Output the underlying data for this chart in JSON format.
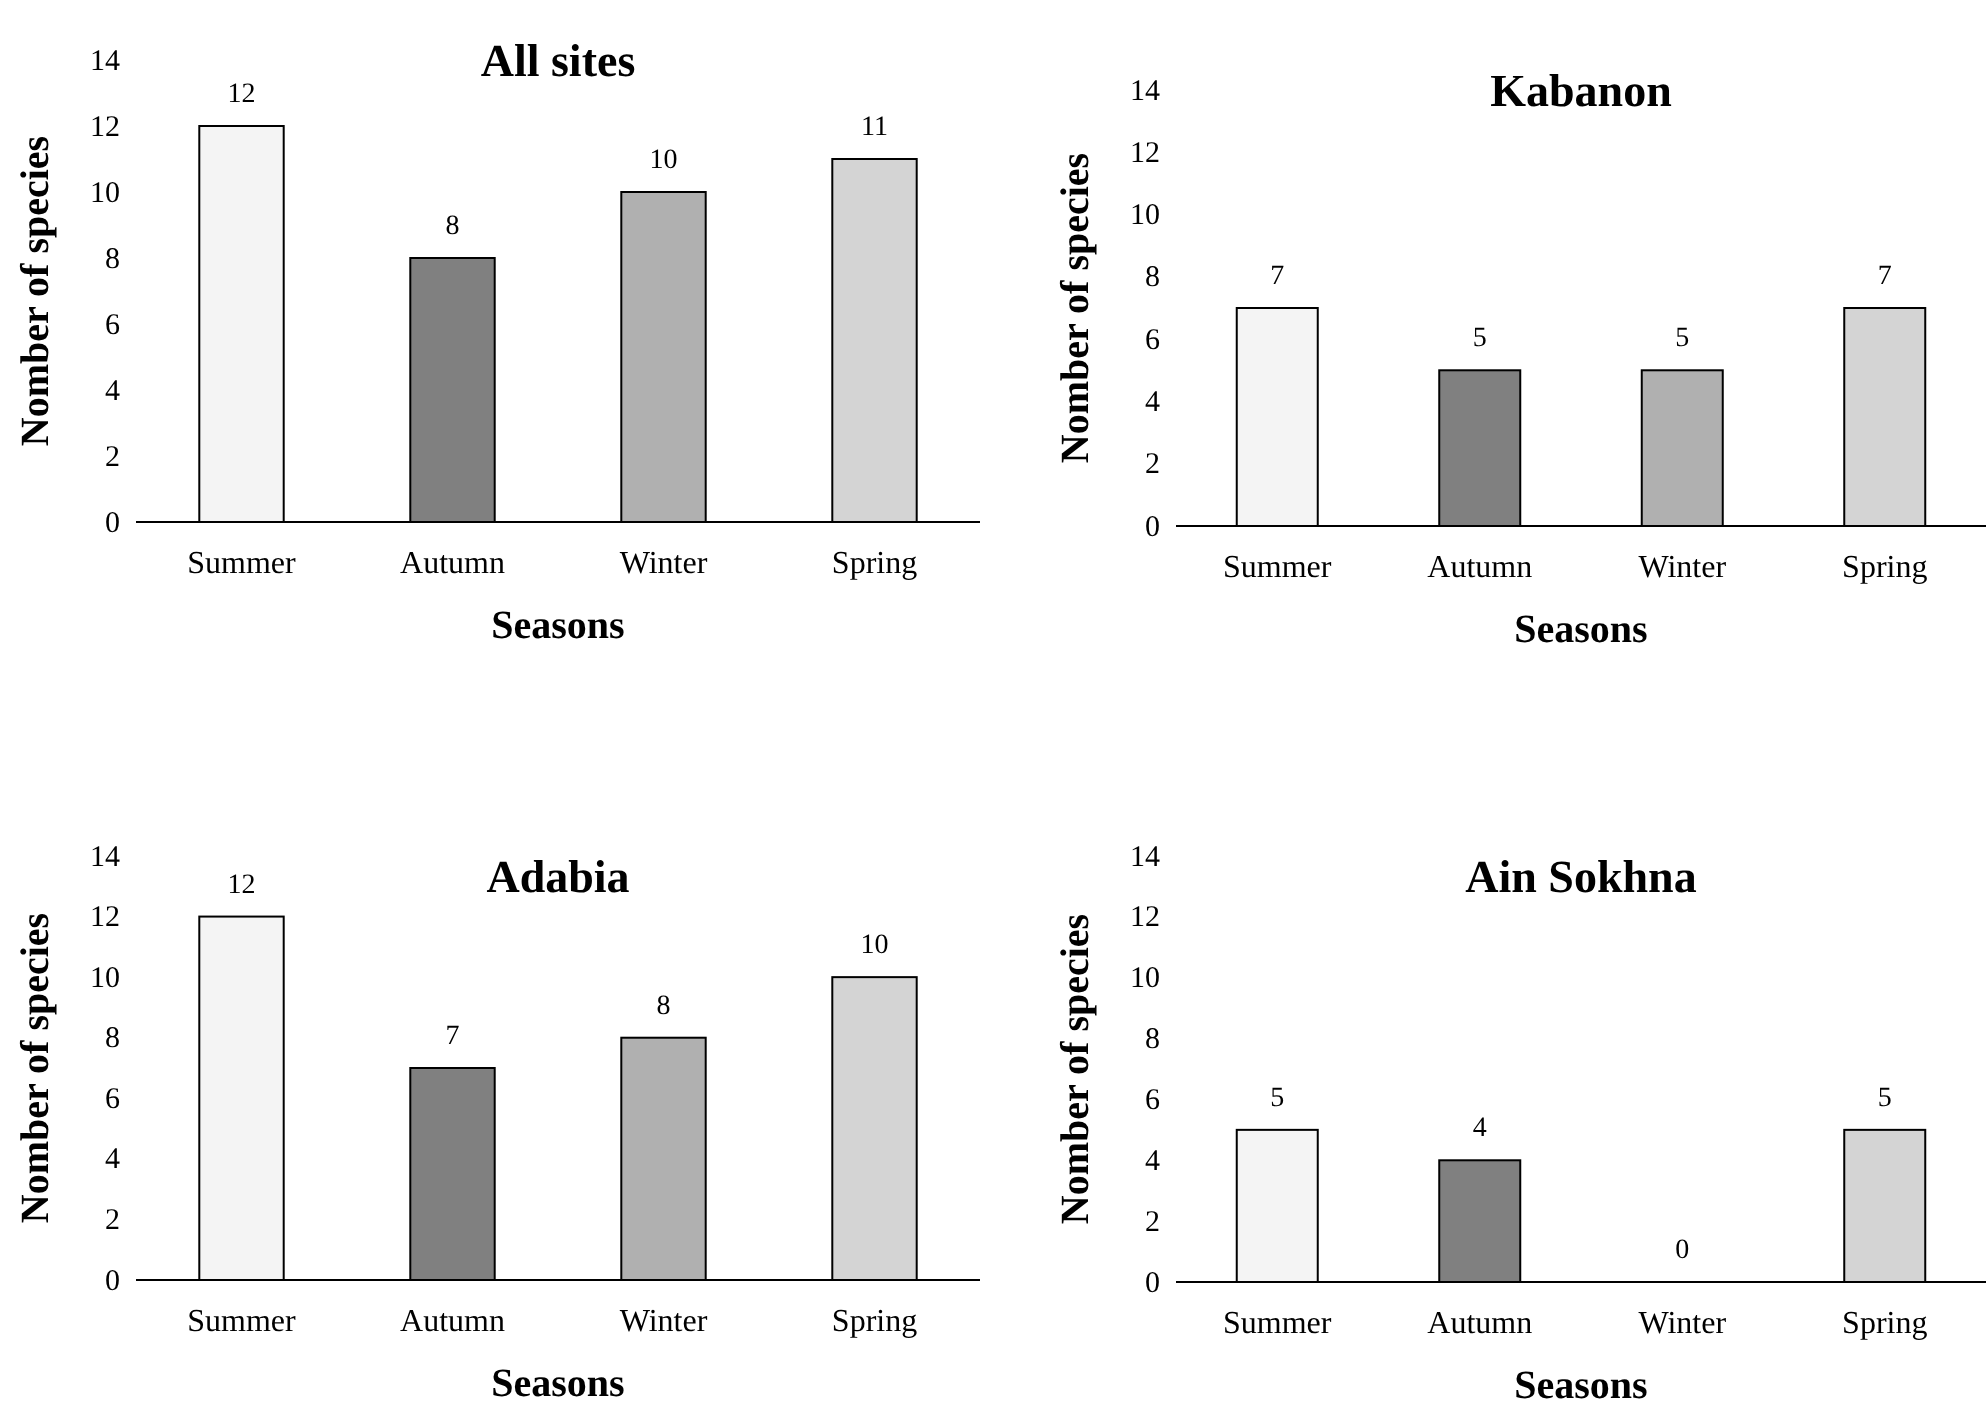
{
  "chart_data": [
    {
      "type": "bar",
      "title": "All sites",
      "xlabel": "Seasons",
      "ylabel": "Nomber of species",
      "categories": [
        "Summer",
        "Autumn",
        "Winter",
        "Spring"
      ],
      "values": [
        12,
        8,
        10,
        11
      ],
      "colors": [
        "#f4f4f4",
        "#808080",
        "#b0b0b0",
        "#d4d4d4"
      ],
      "ylim": [
        0,
        14
      ],
      "yticks": [
        0,
        2,
        4,
        6,
        8,
        10,
        12,
        14
      ],
      "data_labels": true
    },
    {
      "type": "bar",
      "title": "Kabanon",
      "xlabel": "Seasons",
      "ylabel": "Nomber of species",
      "categories": [
        "Summer",
        "Autumn",
        "Winter",
        "Spring"
      ],
      "values": [
        7,
        5,
        5,
        7
      ],
      "colors": [
        "#f4f4f4",
        "#808080",
        "#b0b0b0",
        "#d4d4d4"
      ],
      "ylim": [
        0,
        14
      ],
      "yticks": [
        0,
        2,
        4,
        6,
        8,
        10,
        12,
        14
      ],
      "data_labels": true
    },
    {
      "type": "bar",
      "title": "Adabia",
      "xlabel": "Seasons",
      "ylabel": "Nomber of species",
      "categories": [
        "Summer",
        "Autumn",
        "Winter",
        "Spring"
      ],
      "values": [
        12,
        7,
        8,
        10
      ],
      "colors": [
        "#f4f4f4",
        "#808080",
        "#b0b0b0",
        "#d4d4d4"
      ],
      "ylim": [
        0,
        14
      ],
      "yticks": [
        0,
        2,
        4,
        6,
        8,
        10,
        12,
        14
      ],
      "data_labels": true
    },
    {
      "type": "bar",
      "title": "Ain Sokhna",
      "xlabel": "Seasons",
      "ylabel": "Nomber of species",
      "categories": [
        "Summer",
        "Autumn",
        "Winter",
        "Spring"
      ],
      "values": [
        5,
        4,
        0,
        5
      ],
      "colors": [
        "#f4f4f4",
        "#808080",
        "#b0b0b0",
        "#d4d4d4"
      ],
      "ylim": [
        0,
        14
      ],
      "yticks": [
        0,
        2,
        4,
        6,
        8,
        10,
        12,
        14
      ],
      "data_labels": true
    }
  ]
}
